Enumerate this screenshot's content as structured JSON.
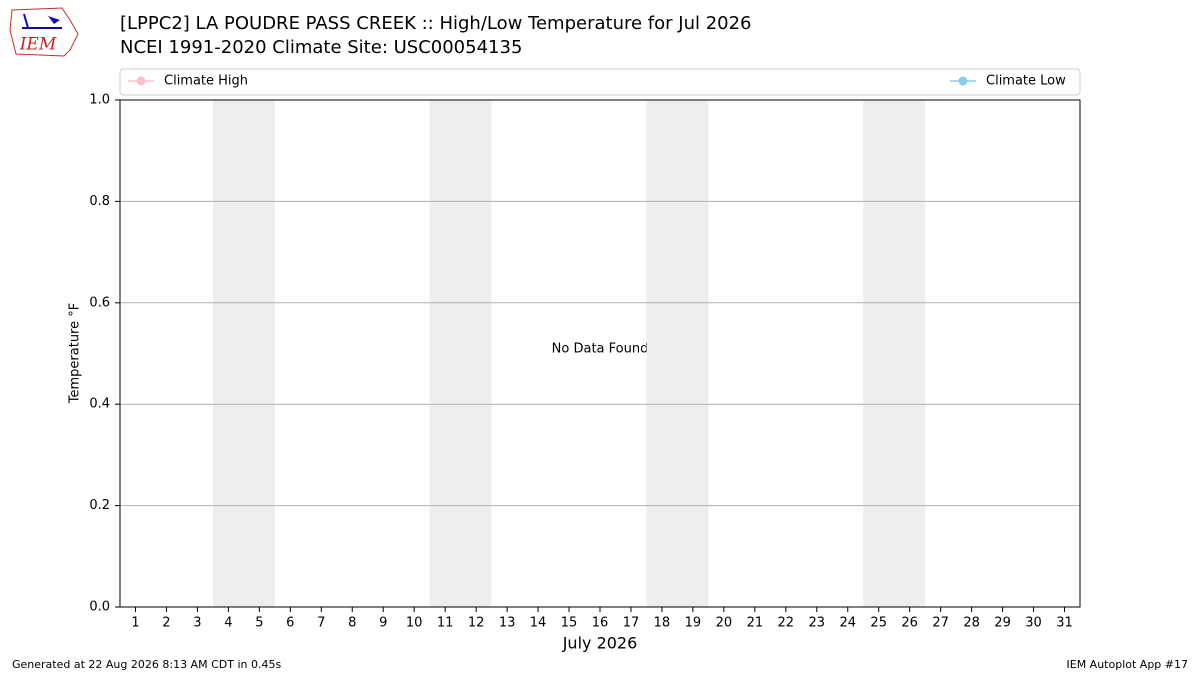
{
  "logo": {
    "text": "IEM"
  },
  "chart_data": {
    "type": "line",
    "title": "[LPPC2] LA POUDRE PASS CREEK :: High/Low Temperature for Jul 2026",
    "subtitle": "NCEI 1991-2020 Climate Site: USC00054135",
    "ylabel": "Temperature °F",
    "xlabel": "July 2026",
    "annotation": "No Data Found",
    "x": [
      1,
      2,
      3,
      4,
      5,
      6,
      7,
      8,
      9,
      10,
      11,
      12,
      13,
      14,
      15,
      16,
      17,
      18,
      19,
      20,
      21,
      22,
      23,
      24,
      25,
      26,
      27,
      28,
      29,
      30,
      31
    ],
    "series": [
      {
        "name": "Climate High",
        "color": "#ffc0cb",
        "values": [
          null,
          null,
          null,
          null,
          null,
          null,
          null,
          null,
          null,
          null,
          null,
          null,
          null,
          null,
          null,
          null,
          null,
          null,
          null,
          null,
          null,
          null,
          null,
          null,
          null,
          null,
          null,
          null,
          null,
          null,
          null
        ]
      },
      {
        "name": "Climate Low",
        "color": "#87ceeb",
        "values": [
          null,
          null,
          null,
          null,
          null,
          null,
          null,
          null,
          null,
          null,
          null,
          null,
          null,
          null,
          null,
          null,
          null,
          null,
          null,
          null,
          null,
          null,
          null,
          null,
          null,
          null,
          null,
          null,
          null,
          null,
          null
        ]
      }
    ],
    "shaded_days": [
      [
        4,
        5
      ],
      [
        11,
        12
      ],
      [
        18,
        19
      ],
      [
        25,
        26
      ]
    ],
    "shade_color": "#eeeeee",
    "xlim": [
      0.5,
      31.5
    ],
    "xticks": [
      1,
      2,
      3,
      4,
      5,
      6,
      7,
      8,
      9,
      10,
      11,
      12,
      13,
      14,
      15,
      16,
      17,
      18,
      19,
      20,
      21,
      22,
      23,
      24,
      25,
      26,
      27,
      28,
      29,
      30,
      31
    ],
    "ylim": [
      0,
      1
    ],
    "yticks": [
      {
        "value": 0,
        "label": "0.0"
      },
      0.2,
      0.4,
      0.6,
      0.8,
      {
        "value": 1,
        "label": "1.0"
      }
    ],
    "grid": true,
    "legend": "top"
  },
  "footer": {
    "left": "Generated at 22 Aug 2026 8:13 AM CDT in 0.45s",
    "right": "IEM Autoplot App #17"
  }
}
